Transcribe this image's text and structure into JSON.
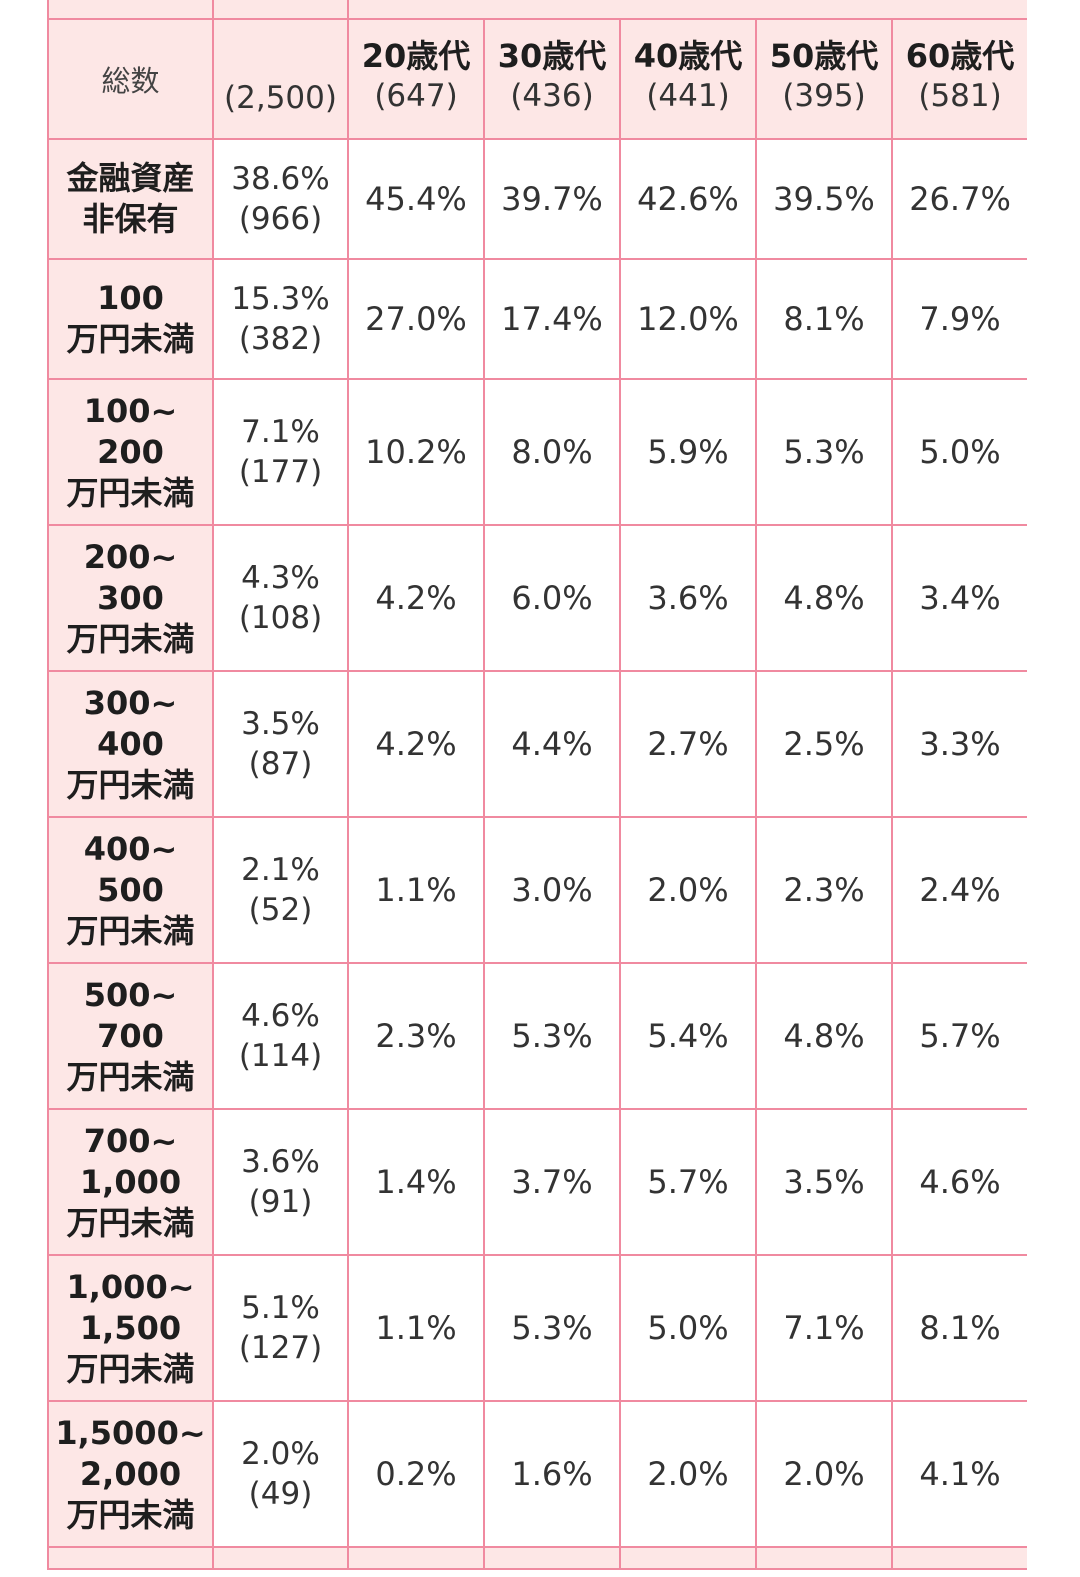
{
  "header": {
    "total_label": "総数",
    "total_count": "(2,500)",
    "ages": [
      {
        "label": "20歳代",
        "count": "(647)"
      },
      {
        "label": "30歳代",
        "count": "(436)"
      },
      {
        "label": "40歳代",
        "count": "(441)"
      },
      {
        "label": "50歳代",
        "count": "(395)"
      },
      {
        "label": "60歳代",
        "count": "(581)"
      }
    ]
  },
  "rows": [
    {
      "label_lines": [
        "金融資産",
        "非保有"
      ],
      "total_pct": "38.6%",
      "total_count": "(966)",
      "values": [
        "45.4%",
        "39.7%",
        "42.6%",
        "39.5%",
        "26.7%"
      ]
    },
    {
      "label_lines": [
        "100",
        "万円未満"
      ],
      "total_pct": "15.3%",
      "total_count": "(382)",
      "values": [
        "27.0%",
        "17.4%",
        "12.0%",
        "8.1%",
        "7.9%"
      ]
    },
    {
      "label_lines": [
        "100~",
        "200",
        "万円未満"
      ],
      "total_pct": "7.1%",
      "total_count": "(177)",
      "values": [
        "10.2%",
        "8.0%",
        "5.9%",
        "5.3%",
        "5.0%"
      ]
    },
    {
      "label_lines": [
        "200~",
        "300",
        "万円未満"
      ],
      "total_pct": "4.3%",
      "total_count": "(108)",
      "values": [
        "4.2%",
        "6.0%",
        "3.6%",
        "4.8%",
        "3.4%"
      ]
    },
    {
      "label_lines": [
        "300~",
        "400",
        "万円未満"
      ],
      "total_pct": "3.5%",
      "total_count": "(87)",
      "values": [
        "4.2%",
        "4.4%",
        "2.7%",
        "2.5%",
        "3.3%"
      ]
    },
    {
      "label_lines": [
        "400~",
        "500",
        "万円未満"
      ],
      "total_pct": "2.1%",
      "total_count": "(52)",
      "values": [
        "1.1%",
        "3.0%",
        "2.0%",
        "2.3%",
        "2.4%"
      ]
    },
    {
      "label_lines": [
        "500~",
        "700",
        "万円未満"
      ],
      "total_pct": "4.6%",
      "total_count": "(114)",
      "values": [
        "2.3%",
        "5.3%",
        "5.4%",
        "4.8%",
        "5.7%"
      ]
    },
    {
      "label_lines": [
        "700~",
        "1,000",
        "万円未満"
      ],
      "total_pct": "3.6%",
      "total_count": "(91)",
      "values": [
        "1.4%",
        "3.7%",
        "5.7%",
        "3.5%",
        "4.6%"
      ]
    },
    {
      "label_lines": [
        "1,000~",
        "1,500",
        "万円未満"
      ],
      "total_pct": "5.1%",
      "total_count": "(127)",
      "values": [
        "1.1%",
        "5.3%",
        "5.0%",
        "7.1%",
        "8.1%"
      ]
    },
    {
      "label_lines": [
        "1,5000~",
        "2,000",
        "万円未満"
      ],
      "total_pct": "2.0%",
      "total_count": "(49)",
      "values": [
        "0.2%",
        "1.6%",
        "2.0%",
        "2.0%",
        "4.1%"
      ]
    }
  ]
}
